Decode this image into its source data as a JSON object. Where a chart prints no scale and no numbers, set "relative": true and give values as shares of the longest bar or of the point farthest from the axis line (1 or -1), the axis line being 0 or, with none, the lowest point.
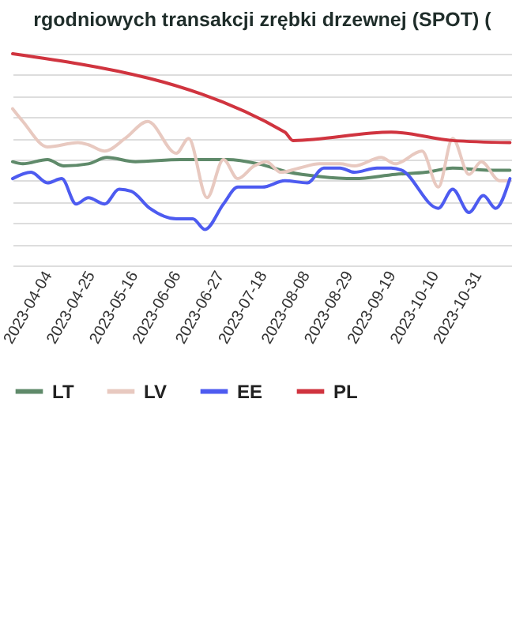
{
  "chart_data": {
    "type": "line",
    "title": "rgodniowych transakcji zrębki drzewnej (SPOT) (",
    "relative": true,
    "grid": "y",
    "legend": "bottom",
    "line_style": "solid",
    "marker": "none",
    "xlim": [
      "2023-03-18",
      "2023-11-17"
    ],
    "xticks": [
      "2023-04-04",
      "2023-04-25",
      "2023-05-16",
      "2023-06-06",
      "2023-06-27",
      "2023-07-18",
      "2023-08-08",
      "2023-08-29",
      "2023-09-19",
      "2023-10-10",
      "2023-10-31"
    ],
    "series": [
      {
        "name": "LT",
        "color": "#5f8a6a",
        "x": [
          "2023-03-18",
          "2023-03-23",
          "2023-04-04",
          "2023-04-12",
          "2023-04-24",
          "2023-05-03",
          "2023-05-17",
          "2023-06-08",
          "2023-07-01",
          "2023-07-16",
          "2023-07-31",
          "2023-08-15",
          "2023-09-01",
          "2023-09-21",
          "2023-10-06",
          "2023-10-19",
          "2023-11-05",
          "2023-11-16"
        ],
        "values": [
          0.49,
          0.48,
          0.5,
          0.47,
          0.48,
          0.51,
          0.49,
          0.5,
          0.5,
          0.48,
          0.44,
          0.42,
          0.41,
          0.43,
          0.44,
          0.46,
          0.45,
          0.45
        ]
      },
      {
        "name": "LV",
        "color": "#e8c9c0",
        "x": [
          "2023-03-18",
          "2023-03-23",
          "2023-04-04",
          "2023-04-19",
          "2023-04-24",
          "2023-05-02",
          "2023-05-12",
          "2023-05-23",
          "2023-06-06",
          "2023-06-12",
          "2023-06-21",
          "2023-06-29",
          "2023-07-06",
          "2023-07-14",
          "2023-07-20",
          "2023-07-27",
          "2023-08-05",
          "2023-08-15",
          "2023-08-25",
          "2023-09-01",
          "2023-09-14",
          "2023-09-21",
          "2023-10-04",
          "2023-10-12",
          "2023-10-19",
          "2023-10-27",
          "2023-11-02",
          "2023-11-11",
          "2023-11-16"
        ],
        "values": [
          0.74,
          0.68,
          0.56,
          0.58,
          0.57,
          0.54,
          0.6,
          0.68,
          0.53,
          0.6,
          0.32,
          0.5,
          0.41,
          0.47,
          0.49,
          0.44,
          0.46,
          0.48,
          0.48,
          0.47,
          0.51,
          0.48,
          0.54,
          0.37,
          0.6,
          0.43,
          0.49,
          0.4,
          0.4
        ]
      },
      {
        "name": "EE",
        "color": "#4d5bf0",
        "x": [
          "2023-03-18",
          "2023-03-27",
          "2023-04-04",
          "2023-04-11",
          "2023-04-18",
          "2023-04-24",
          "2023-05-02",
          "2023-05-09",
          "2023-05-15",
          "2023-05-24",
          "2023-06-06",
          "2023-06-14",
          "2023-06-20",
          "2023-06-29",
          "2023-07-06",
          "2023-07-18",
          "2023-07-29",
          "2023-08-09",
          "2023-08-17",
          "2023-08-25",
          "2023-09-01",
          "2023-09-12",
          "2023-09-19",
          "2023-09-24",
          "2023-10-12",
          "2023-10-19",
          "2023-10-27",
          "2023-11-03",
          "2023-11-09",
          "2023-11-16"
        ],
        "values": [
          0.41,
          0.44,
          0.39,
          0.41,
          0.29,
          0.32,
          0.29,
          0.36,
          0.35,
          0.27,
          0.22,
          0.22,
          0.17,
          0.29,
          0.37,
          0.37,
          0.4,
          0.39,
          0.46,
          0.46,
          0.44,
          0.46,
          0.46,
          0.45,
          0.27,
          0.36,
          0.25,
          0.33,
          0.27,
          0.41
        ]
      },
      {
        "name": "PL",
        "color": "#d0343f",
        "x": [
          "2023-03-18",
          "2023-07-29",
          "2023-08-02",
          "2023-09-19",
          "2023-10-19",
          "2023-11-16"
        ],
        "values": [
          1.0,
          0.63,
          0.59,
          0.63,
          0.59,
          0.58
        ]
      }
    ]
  }
}
